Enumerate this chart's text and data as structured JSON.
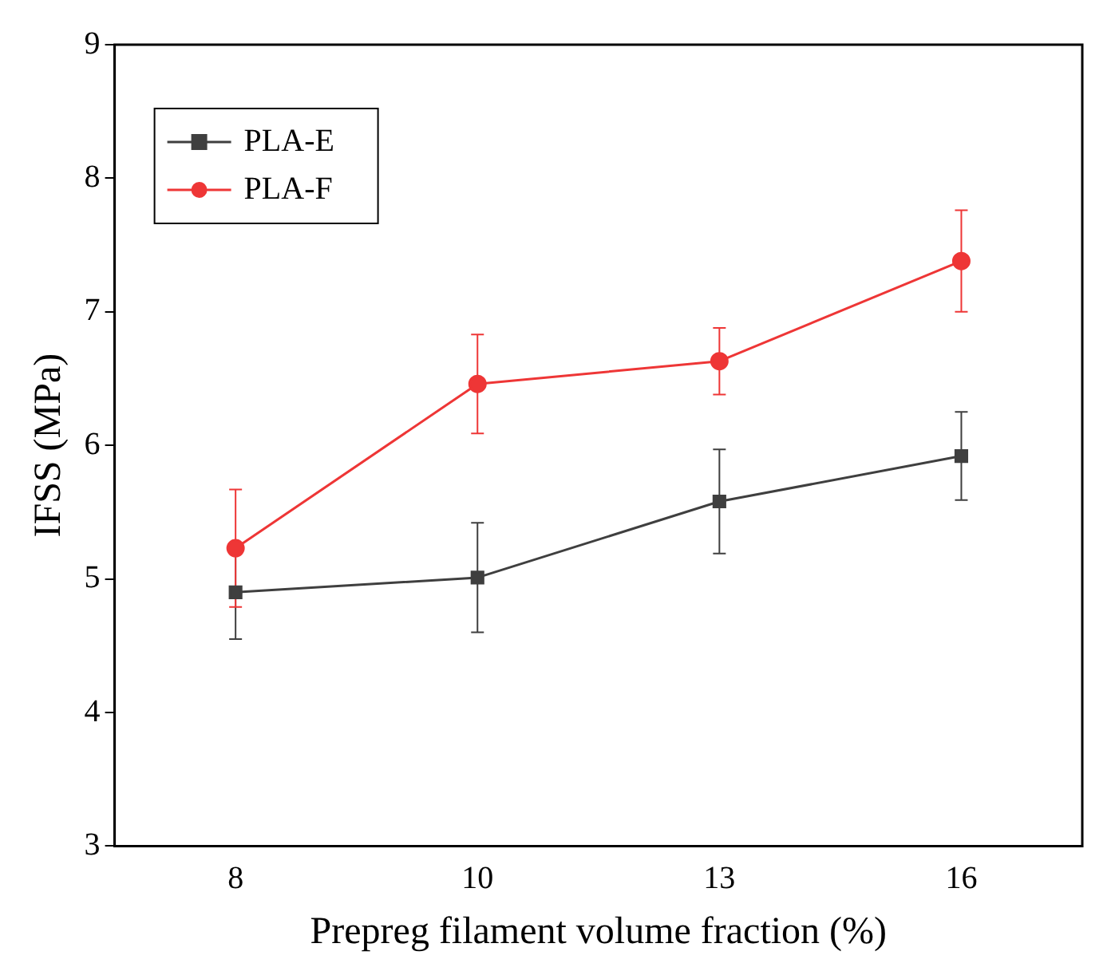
{
  "chart_data": {
    "type": "line",
    "xlabel": "Prepreg filament volume fraction (%)",
    "ylabel": "IFSS (MPa)",
    "categories": [
      "8",
      "10",
      "13",
      "16"
    ],
    "series": [
      {
        "name": "PLA-E",
        "color": "#3f3f3f",
        "values": [
          4.9,
          5.01,
          5.58,
          5.92
        ],
        "errors": [
          0.35,
          0.41,
          0.39,
          0.33
        ]
      },
      {
        "name": "PLA-F",
        "color": "#ee3636",
        "values": [
          5.23,
          6.46,
          6.63,
          7.38
        ],
        "errors": [
          0.44,
          0.37,
          0.25,
          0.38
        ],
        "marker": "circle"
      }
    ],
    "marker": "square",
    "line_style": "solid",
    "ylim": [
      3,
      9
    ],
    "yticks": [
      3,
      4,
      5,
      6,
      7,
      8,
      9
    ],
    "grid": false,
    "legend": "top left"
  }
}
